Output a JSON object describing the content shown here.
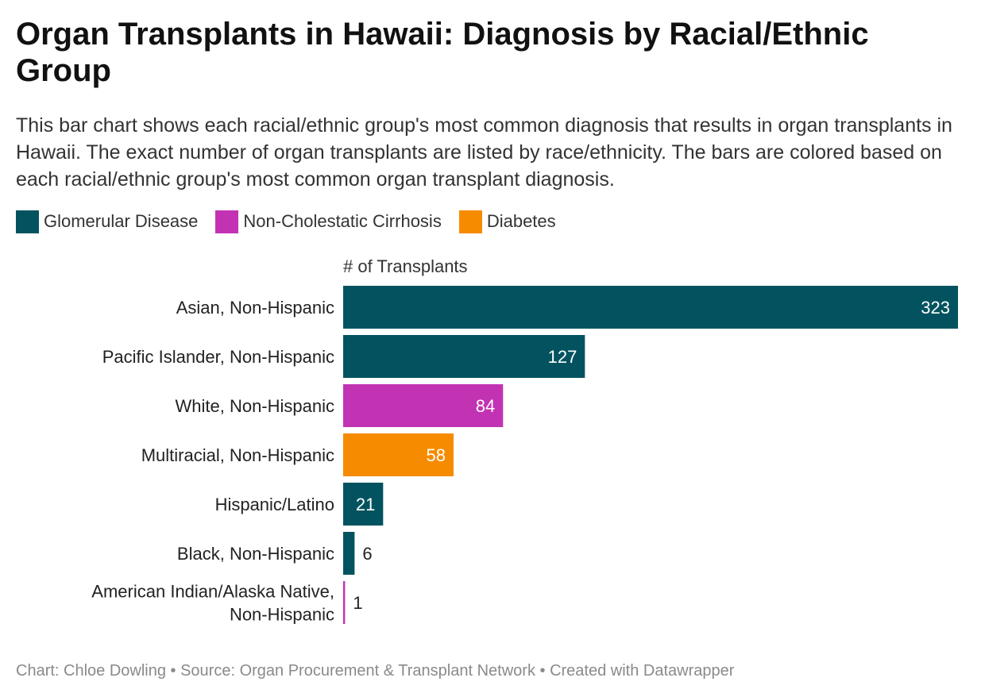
{
  "title": "Organ Transplants in Hawaii: Diagnosis by Racial/Ethnic Group",
  "subtitle": "This bar chart shows each racial/ethnic group's most common diagnosis that results in organ transplants in Hawaii. The exact number of organ transplants are listed by race/ethnicity. The bars are colored based on each racial/ethnic group's most common organ transplant diagnosis.",
  "legend": [
    {
      "label": "Glomerular Disease",
      "color": "#02535f"
    },
    {
      "label": "Non-Cholestatic Cirrhosis",
      "color": "#c233b3"
    },
    {
      "label": "Diabetes",
      "color": "#f68b00"
    }
  ],
  "footer": {
    "text": "Chart: Chloe Dowling • Source: Organ Procurement & Transplant Network • Created with Datawrapper"
  },
  "chart_data": {
    "type": "bar",
    "orientation": "horizontal",
    "title": "Organ Transplants in Hawaii: Diagnosis by Racial/Ethnic Group",
    "xlabel": "# of Transplants",
    "xlim": [
      0,
      323
    ],
    "grid": false,
    "legend_position": "top-left",
    "categories": [
      "Asian, Non-Hispanic",
      "Pacific Islander, Non-Hispanic",
      "White, Non-Hispanic",
      "Multiracial, Non-Hispanic",
      "Hispanic/Latino",
      "Black, Non-Hispanic",
      "American Indian/Alaska Native, Non-Hispanic"
    ],
    "values": [
      323,
      127,
      84,
      58,
      21,
      6,
      1
    ],
    "diagnosis": [
      "Glomerular Disease",
      "Glomerular Disease",
      "Non-Cholestatic Cirrhosis",
      "Diabetes",
      "Glomerular Disease",
      "Glomerular Disease",
      "Non-Cholestatic Cirrhosis"
    ]
  }
}
